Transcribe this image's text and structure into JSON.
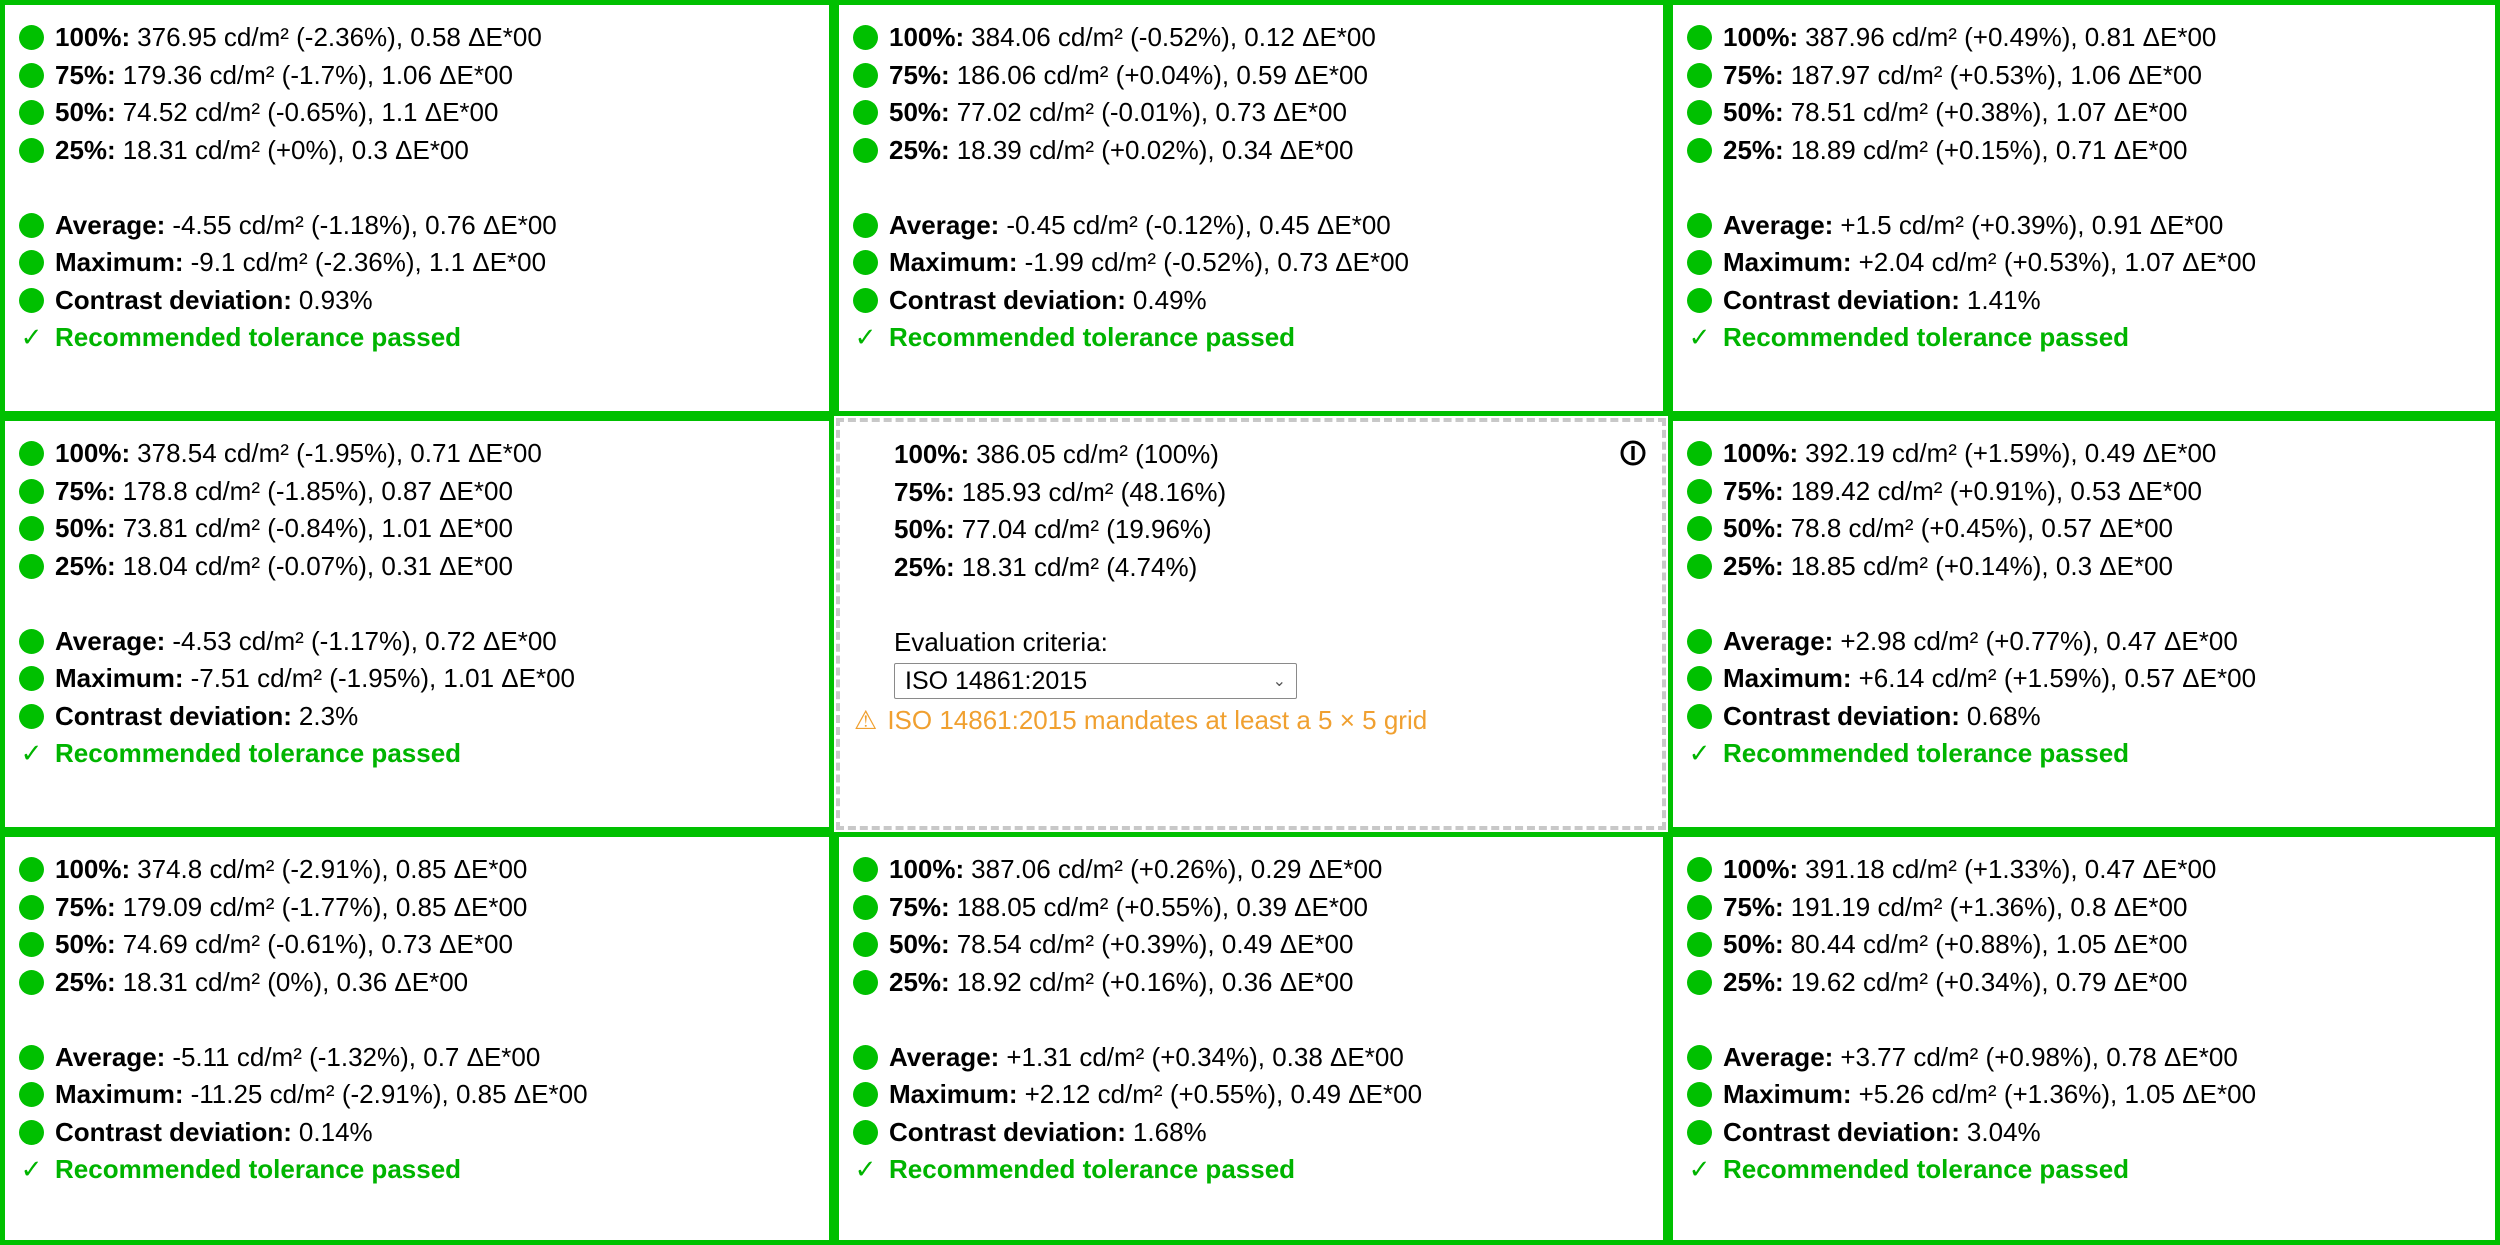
{
  "colors": {
    "pass": "#00c000",
    "warning": "#f0a030",
    "reference_border": "#c8c8c8"
  },
  "icons": {
    "status": "green-dot-icon",
    "check": "check-icon",
    "warning": "warning-icon",
    "info": "info-icon"
  },
  "labels": {
    "p100": "100%:",
    "p75": "75%:",
    "p50": "50%:",
    "p25": "25%:",
    "average": "Average:",
    "maximum": "Maximum:",
    "contrast": "Contrast deviation:"
  },
  "status_text": "Recommended tolerance passed",
  "check_glyph": "✓",
  "cells": [
    {
      "p100": "376.95 cd/m² (-2.36%), 0.58 ΔE*00",
      "p75": "179.36 cd/m² (-1.7%), 1.06 ΔE*00",
      "p50": "74.52 cd/m² (-0.65%), 1.1 ΔE*00",
      "p25": "18.31 cd/m² (+0%), 0.3 ΔE*00",
      "average": "-4.55 cd/m² (-1.18%), 0.76 ΔE*00",
      "maximum": "-9.1 cd/m² (-2.36%), 1.1 ΔE*00",
      "contrast": "0.93%"
    },
    {
      "p100": "384.06 cd/m² (-0.52%), 0.12 ΔE*00",
      "p75": "186.06 cd/m² (+0.04%), 0.59 ΔE*00",
      "p50": "77.02 cd/m² (-0.01%), 0.73 ΔE*00",
      "p25": "18.39 cd/m² (+0.02%), 0.34 ΔE*00",
      "average": "-0.45 cd/m² (-0.12%), 0.45 ΔE*00",
      "maximum": "-1.99 cd/m² (-0.52%), 0.73 ΔE*00",
      "contrast": "0.49%"
    },
    {
      "p100": "387.96 cd/m² (+0.49%), 0.81 ΔE*00",
      "p75": "187.97 cd/m² (+0.53%), 1.06 ΔE*00",
      "p50": "78.51 cd/m² (+0.38%), 1.07 ΔE*00",
      "p25": "18.89 cd/m² (+0.15%), 0.71 ΔE*00",
      "average": "+1.5 cd/m² (+0.39%), 0.91 ΔE*00",
      "maximum": "+2.04 cd/m² (+0.53%), 1.07 ΔE*00",
      "contrast": "1.41%"
    },
    {
      "p100": "378.54 cd/m² (-1.95%), 0.71 ΔE*00",
      "p75": "178.8 cd/m² (-1.85%), 0.87 ΔE*00",
      "p50": "73.81 cd/m² (-0.84%), 1.01 ΔE*00",
      "p25": "18.04 cd/m² (-0.07%), 0.31 ΔE*00",
      "average": "-4.53 cd/m² (-1.17%), 0.72 ΔE*00",
      "maximum": "-7.51 cd/m² (-1.95%), 1.01 ΔE*00",
      "contrast": "2.3%"
    },
    {
      "reference": true,
      "p100": "386.05 cd/m² (100%)",
      "p75": "185.93 cd/m² (48.16%)",
      "p50": "77.04 cd/m² (19.96%)",
      "p25": "18.31 cd/m² (4.74%)",
      "criteria_label": "Evaluation criteria:",
      "criteria_value": "ISO 14861:2015",
      "warning": "ISO 14861:2015 mandates at least a 5 × 5 grid",
      "warning_glyph": "⚠"
    },
    {
      "p100": "392.19 cd/m² (+1.59%), 0.49 ΔE*00",
      "p75": "189.42 cd/m² (+0.91%), 0.53 ΔE*00",
      "p50": "78.8 cd/m² (+0.45%), 0.57 ΔE*00",
      "p25": "18.85 cd/m² (+0.14%), 0.3 ΔE*00",
      "average": "+2.98 cd/m² (+0.77%), 0.47 ΔE*00",
      "maximum": "+6.14 cd/m² (+1.59%), 0.57 ΔE*00",
      "contrast": "0.68%"
    },
    {
      "p100": "374.8 cd/m² (-2.91%), 0.85 ΔE*00",
      "p75": "179.09 cd/m² (-1.77%), 0.85 ΔE*00",
      "p50": "74.69 cd/m² (-0.61%), 0.73 ΔE*00",
      "p25": "18.31 cd/m² (0%), 0.36 ΔE*00",
      "average": "-5.11 cd/m² (-1.32%), 0.7 ΔE*00",
      "maximum": "-11.25 cd/m² (-2.91%), 0.85 ΔE*00",
      "contrast": "0.14%"
    },
    {
      "p100": "387.06 cd/m² (+0.26%), 0.29 ΔE*00",
      "p75": "188.05 cd/m² (+0.55%), 0.39 ΔE*00",
      "p50": "78.54 cd/m² (+0.39%), 0.49 ΔE*00",
      "p25": "18.92 cd/m² (+0.16%), 0.36 ΔE*00",
      "average": "+1.31 cd/m² (+0.34%), 0.38 ΔE*00",
      "maximum": "+2.12 cd/m² (+0.55%), 0.49 ΔE*00",
      "contrast": "1.68%"
    },
    {
      "p100": "391.18 cd/m² (+1.33%), 0.47 ΔE*00",
      "p75": "191.19 cd/m² (+1.36%), 0.8 ΔE*00",
      "p50": "80.44 cd/m² (+0.88%), 1.05 ΔE*00",
      "p25": "19.62 cd/m² (+0.34%), 0.79 ΔE*00",
      "average": "+3.77 cd/m² (+0.98%), 0.78 ΔE*00",
      "maximum": "+5.26 cd/m² (+1.36%), 1.05 ΔE*00",
      "contrast": "3.04%"
    }
  ]
}
